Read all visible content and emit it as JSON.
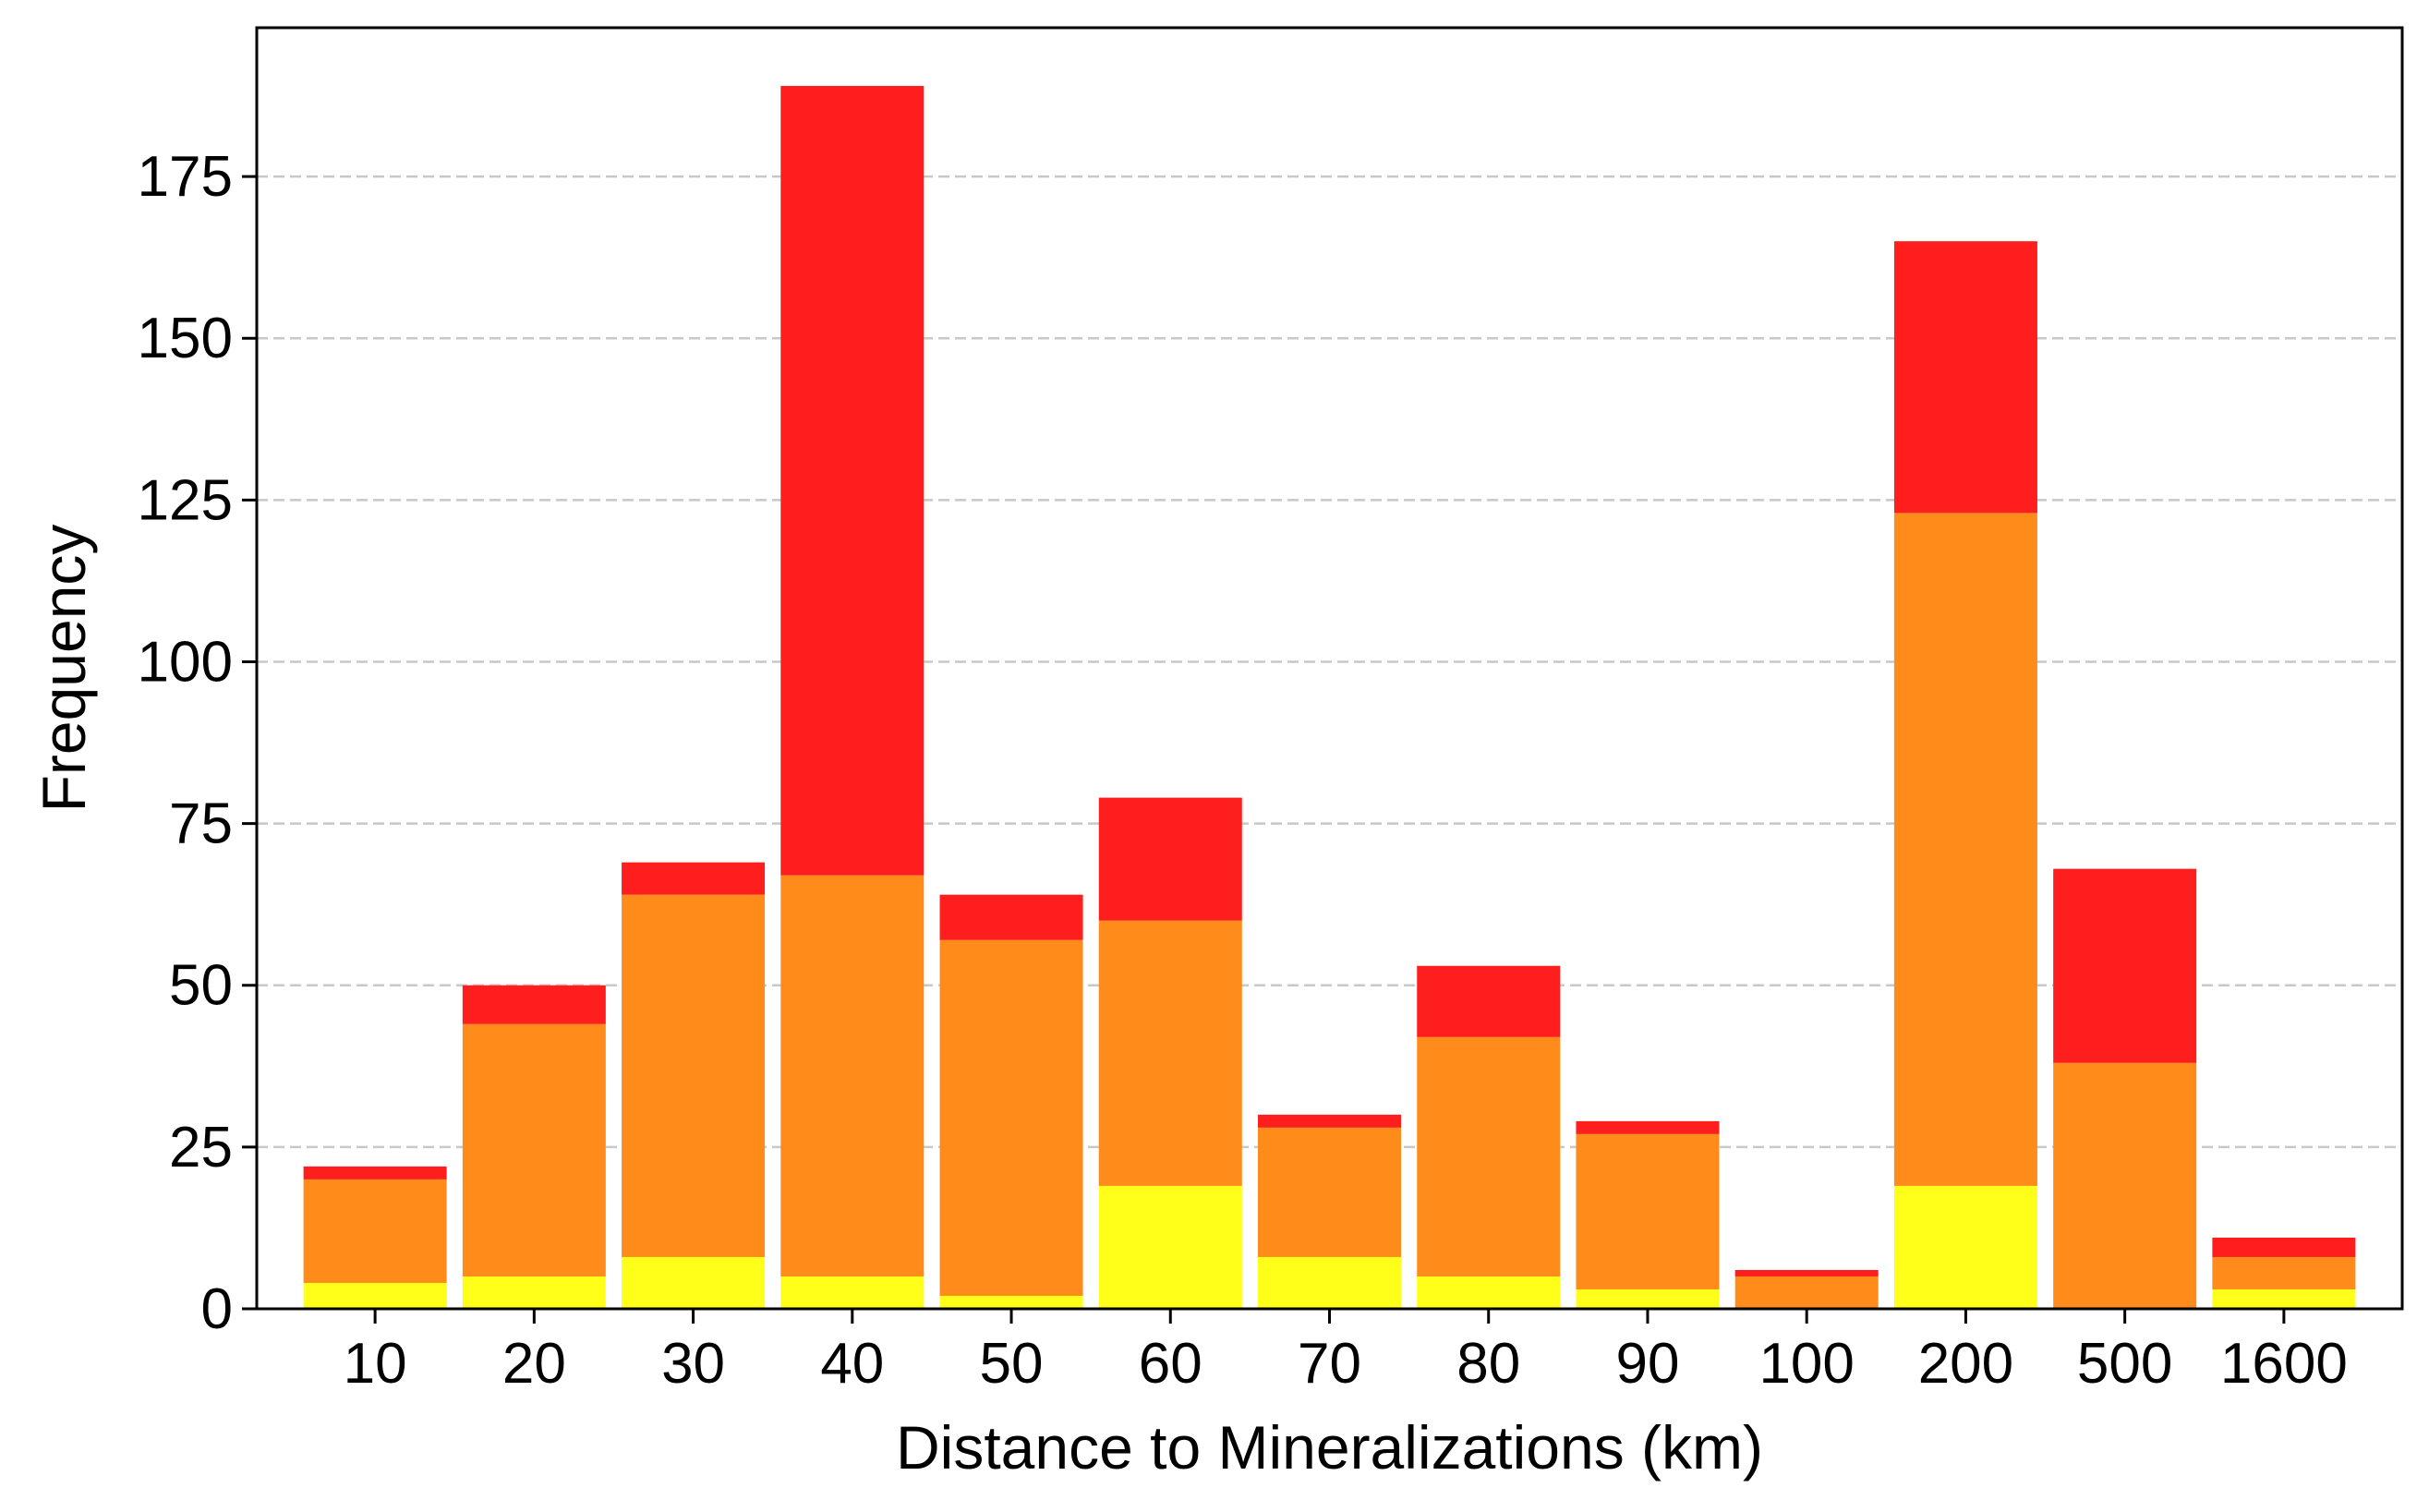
{
  "chart_data": {
    "type": "bar",
    "stacked": true,
    "title": "",
    "xlabel": "Distance to Mineralizations (km)",
    "ylabel": "Frequency",
    "categories": [
      "10",
      "20",
      "30",
      "40",
      "50",
      "60",
      "70",
      "80",
      "90",
      "100",
      "200",
      "500",
      "1600"
    ],
    "series": [
      {
        "color": "#ffff1a",
        "values": [
          4,
          5,
          8,
          5,
          2,
          19,
          8,
          5,
          3,
          0,
          19,
          0,
          3
        ]
      },
      {
        "color": "#ff8c1a",
        "values": [
          16,
          39,
          56,
          62,
          55,
          41,
          20,
          37,
          24,
          5,
          104,
          38,
          5
        ]
      },
      {
        "color": "#ff1e1e",
        "values": [
          2,
          6,
          5,
          122,
          7,
          19,
          2,
          11,
          2,
          1,
          42,
          30,
          3
        ]
      }
    ],
    "ylim": [
      0,
      198
    ],
    "yticks": [
      0,
      25,
      50,
      75,
      100,
      125,
      150,
      175
    ],
    "grid": {
      "axis": "y",
      "style": "dashed",
      "color": "#c8c8c8"
    },
    "legend": "none"
  }
}
